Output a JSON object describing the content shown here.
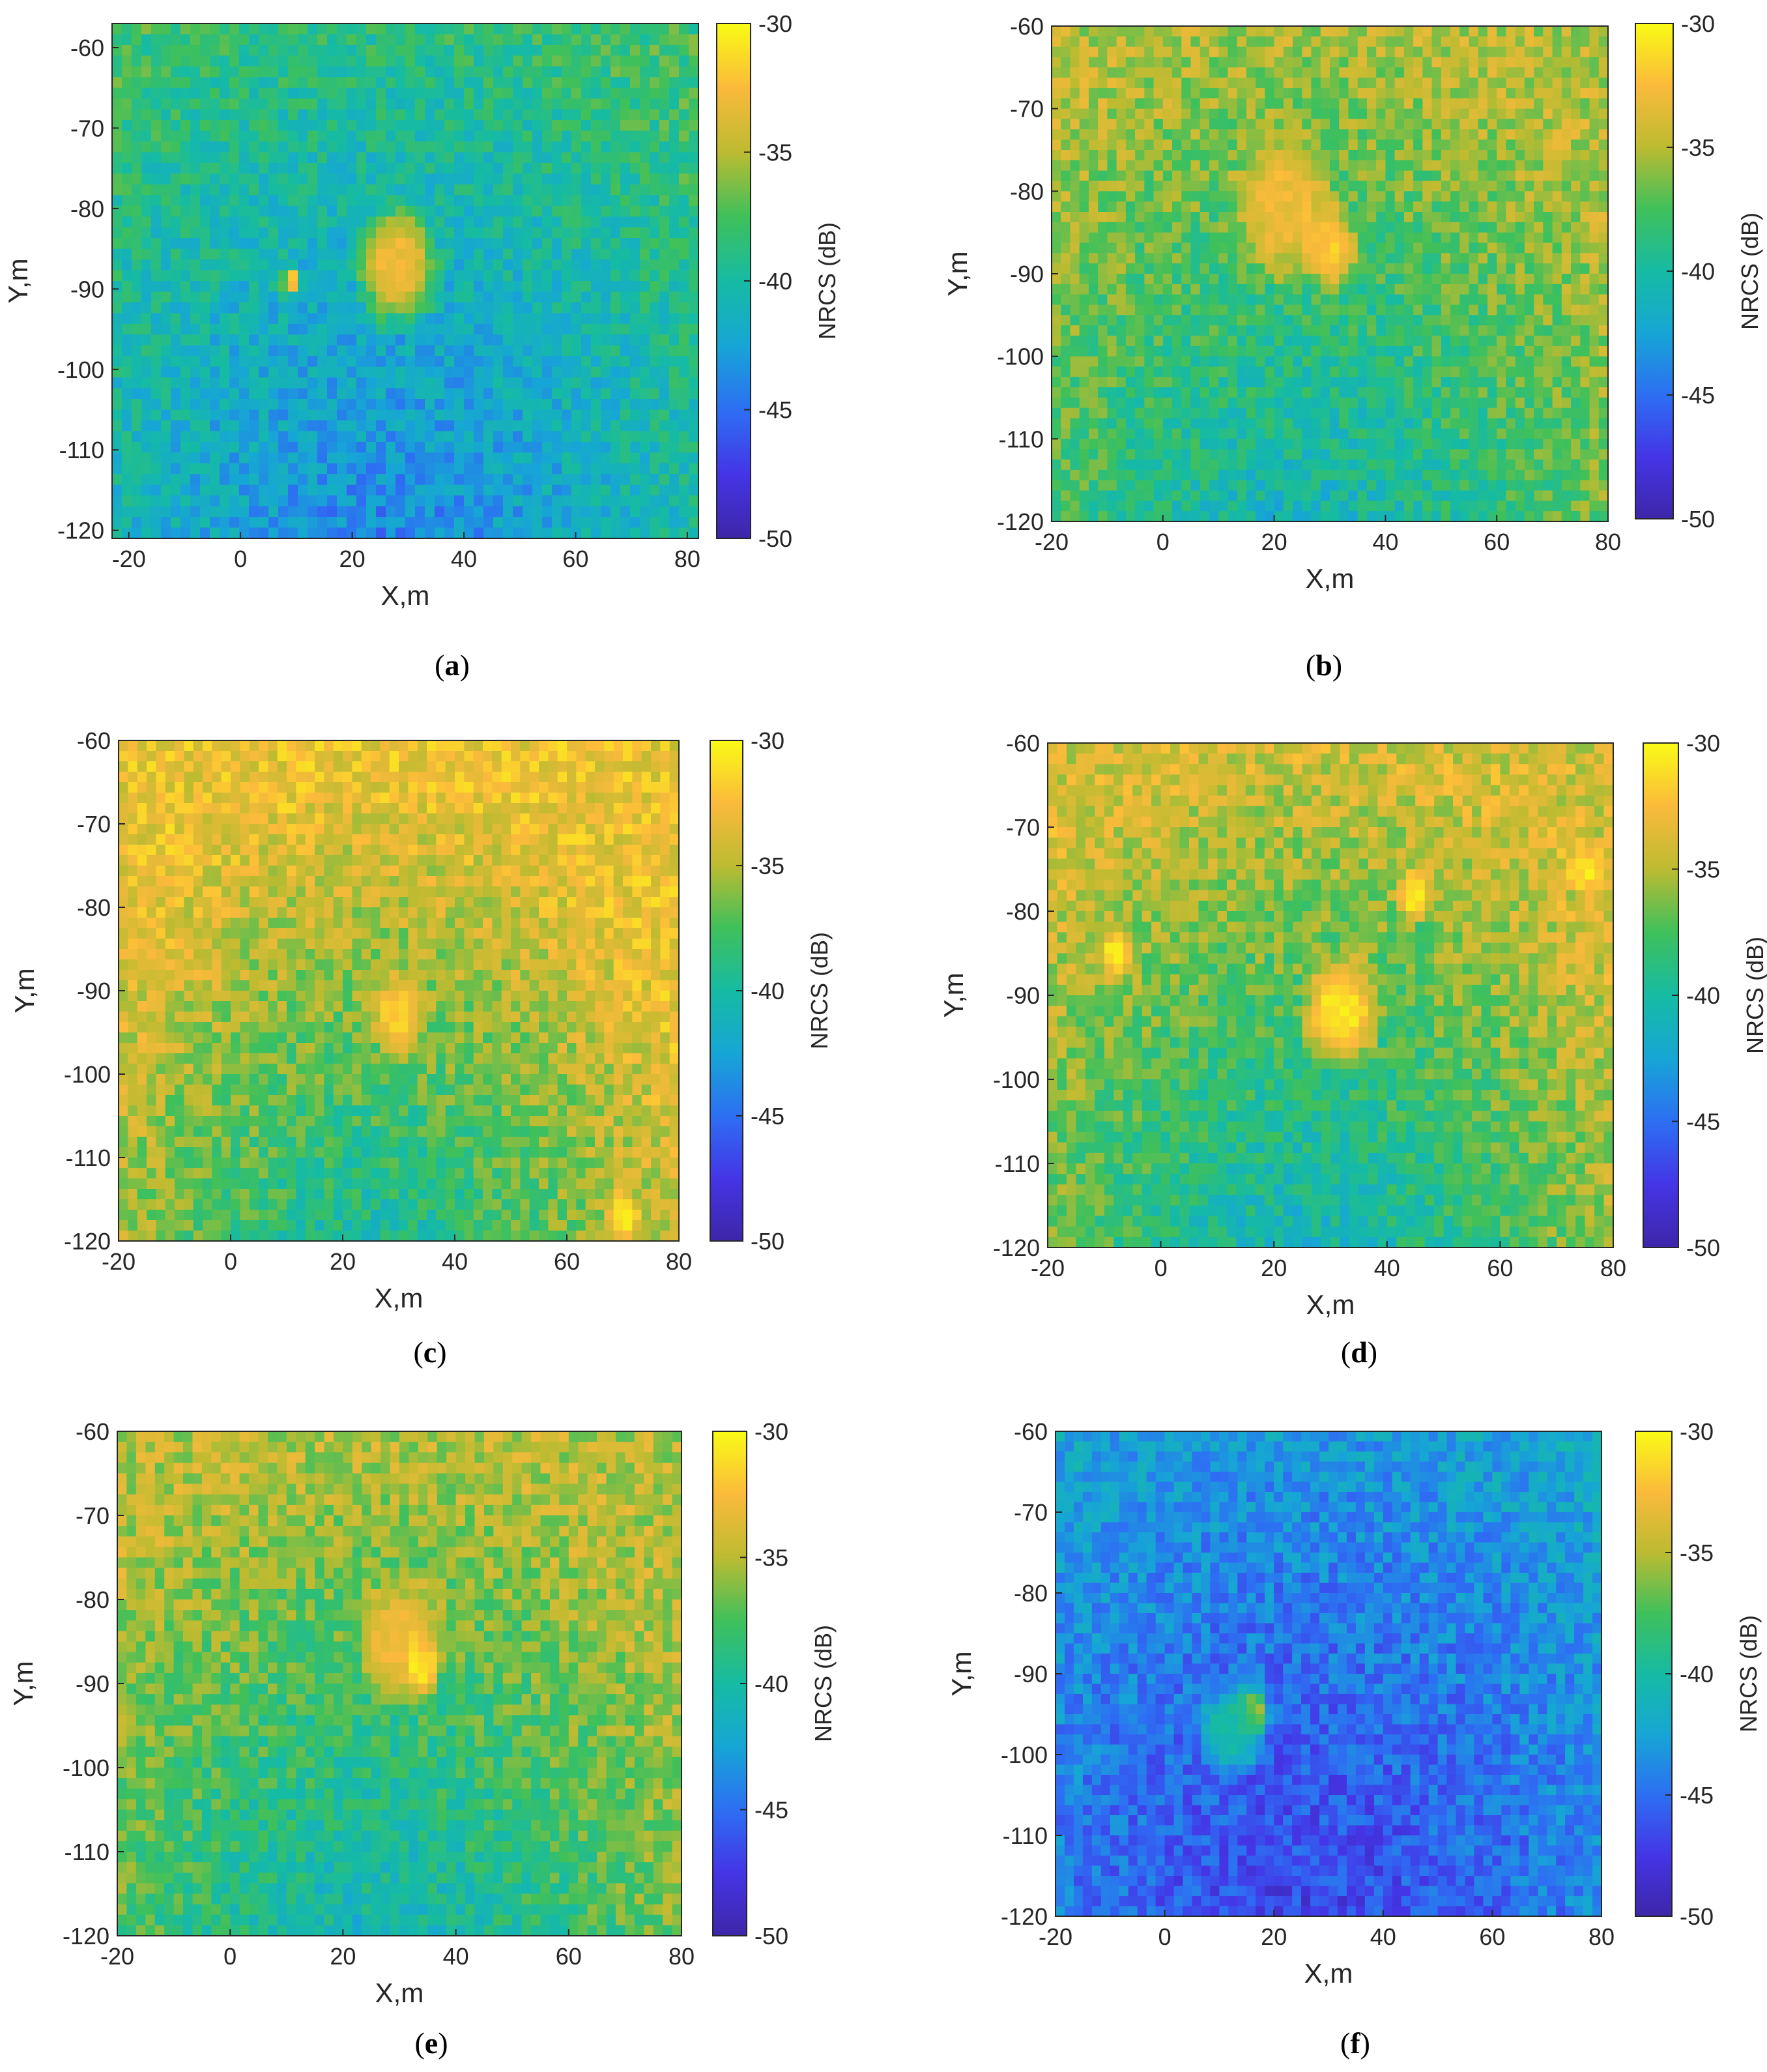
{
  "chart_data": [
    {
      "type": "heatmap",
      "panel_label": "a",
      "xlabel": "X,m",
      "ylabel": "Y,m",
      "xlim": [
        -23,
        82
      ],
      "ylim": [
        -121,
        -57
      ],
      "xticks": [
        -20,
        0,
        20,
        40,
        60,
        80
      ],
      "yticks": [
        -60,
        -70,
        -80,
        -90,
        -100,
        -110,
        -120
      ],
      "colorbar": {
        "label": "NRCS (dB)",
        "range": [
          -50,
          -30
        ],
        "ticks": [
          -30,
          -35,
          -40,
          -45,
          -50
        ]
      },
      "background_db": [
        -38,
        -44
      ],
      "features": [
        {
          "x": 28,
          "y": -87,
          "r": 9,
          "db": -33
        },
        {
          "x": 9,
          "y": -89,
          "r": 2,
          "db": -32
        }
      ],
      "arc_center": [
        25,
        -130
      ],
      "arc_radius": 72
    },
    {
      "type": "heatmap",
      "panel_label": "b",
      "xlabel": "X,m",
      "ylabel": "Y,m",
      "xlim": [
        -20,
        80
      ],
      "ylim": [
        -120,
        -60
      ],
      "xticks": [
        -20,
        0,
        20,
        40,
        60,
        80
      ],
      "yticks": [
        -60,
        -70,
        -80,
        -90,
        -100,
        -110,
        -120
      ],
      "colorbar": {
        "label": "NRCS (dB)",
        "range": [
          -50,
          -30
        ],
        "ticks": [
          -30,
          -35,
          -40,
          -45,
          -50
        ]
      },
      "background_db": [
        -35,
        -41
      ],
      "features": [
        {
          "x": 22,
          "y": -82,
          "r": 11,
          "db": -33
        },
        {
          "x": 30,
          "y": -87,
          "r": 6,
          "db": -32
        }
      ],
      "arc_center": [
        25,
        -130
      ],
      "arc_radius": 62
    },
    {
      "type": "heatmap",
      "panel_label": "c",
      "xlabel": "X,m",
      "ylabel": "Y,m",
      "xlim": [
        -20,
        80
      ],
      "ylim": [
        -120,
        -60
      ],
      "xticks": [
        -20,
        0,
        20,
        40,
        60,
        80
      ],
      "yticks": [
        -60,
        -70,
        -80,
        -90,
        -100,
        -110,
        -120
      ],
      "colorbar": {
        "label": "NRCS (dB)",
        "range": [
          -50,
          -30
        ],
        "ticks": [
          -30,
          -35,
          -40,
          -45,
          -50
        ]
      },
      "background_db": [
        -33,
        -40
      ],
      "features": [
        {
          "x": 30,
          "y": -93,
          "r": 6,
          "db": -32
        },
        {
          "x": 70,
          "y": -117,
          "r": 4,
          "db": -31
        }
      ],
      "arc_center": [
        25,
        -130
      ],
      "arc_radius": 55
    },
    {
      "type": "heatmap",
      "panel_label": "d",
      "xlabel": "X,m",
      "ylabel": "Y,m",
      "xlim": [
        -20,
        80
      ],
      "ylim": [
        -120,
        -60
      ],
      "xticks": [
        -20,
        0,
        20,
        40,
        60,
        80
      ],
      "yticks": [
        -60,
        -70,
        -80,
        -90,
        -100,
        -110,
        -120
      ],
      "colorbar": {
        "label": "NRCS (dB)",
        "range": [
          -50,
          -30
        ],
        "ticks": [
          -30,
          -35,
          -40,
          -45,
          -50
        ]
      },
      "background_db": [
        -34,
        -41
      ],
      "features": [
        {
          "x": 32,
          "y": -92,
          "r": 8,
          "db": -31
        },
        {
          "x": -8,
          "y": -85,
          "r": 4,
          "db": -31
        },
        {
          "x": 45,
          "y": -78,
          "r": 4,
          "db": -31
        },
        {
          "x": 75,
          "y": -75,
          "r": 4,
          "db": -31
        }
      ],
      "arc_center": [
        25,
        -130
      ],
      "arc_radius": 60
    },
    {
      "type": "heatmap",
      "panel_label": "e",
      "xlabel": "X,m",
      "ylabel": "Y,m",
      "xlim": [
        -20,
        80
      ],
      "ylim": [
        -120,
        -60
      ],
      "xticks": [
        -20,
        0,
        20,
        40,
        60,
        80
      ],
      "yticks": [
        -60,
        -70,
        -80,
        -90,
        -100,
        -110,
        -120
      ],
      "colorbar": {
        "label": "NRCS (dB)",
        "range": [
          -50,
          -30
        ],
        "ticks": [
          -30,
          -35,
          -40,
          -45,
          -50
        ]
      },
      "background_db": [
        -35,
        -41
      ],
      "features": [
        {
          "x": 30,
          "y": -85,
          "r": 9,
          "db": -33
        },
        {
          "x": 34,
          "y": -88,
          "r": 4,
          "db": -31
        }
      ],
      "arc_center": [
        25,
        -130
      ],
      "arc_radius": 58
    },
    {
      "type": "heatmap",
      "panel_label": "f",
      "xlabel": "X,m",
      "ylabel": "Y,m",
      "xlim": [
        -20,
        80
      ],
      "ylim": [
        -120,
        -60
      ],
      "xticks": [
        -20,
        0,
        20,
        40,
        60,
        80
      ],
      "yticks": [
        -60,
        -70,
        -80,
        -90,
        -100,
        -110,
        -120
      ],
      "colorbar": {
        "label": "NRCS (dB)",
        "range": [
          -50,
          -30
        ],
        "ticks": [
          -30,
          -35,
          -40,
          -45,
          -50
        ]
      },
      "background_db": [
        -42,
        -47
      ],
      "features": [
        {
          "x": 16,
          "y": -95,
          "r": 4,
          "db": -34
        },
        {
          "x": 12,
          "y": -97,
          "r": 7,
          "db": -40
        }
      ],
      "arc_center": [
        25,
        -130
      ],
      "arc_radius": 75
    }
  ]
}
